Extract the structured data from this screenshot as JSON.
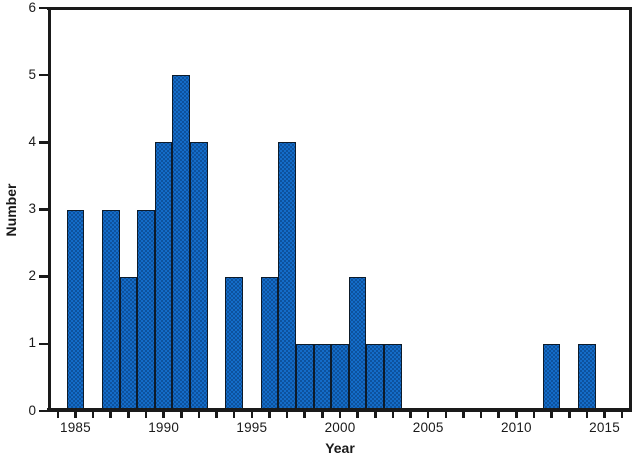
{
  "figure": {
    "x_axis_title": "Year",
    "y_axis_title": "Number"
  },
  "colors": {
    "bar_fill": "#146cc8",
    "bar_stipple": "#073c7a",
    "bar_border": "#0d1b2a",
    "axis": "#1a1a1a",
    "text": "#1a1a1a",
    "background": "#ffffff"
  },
  "chart_data": {
    "type": "bar",
    "title": "",
    "xlabel": "Year",
    "ylabel": "Number",
    "xlim": [
      1983.5,
      2016.5
    ],
    "ylim": [
      0,
      6
    ],
    "grid": false,
    "legend_position": "none",
    "categories": [
      1984,
      1985,
      1986,
      1987,
      1988,
      1989,
      1990,
      1991,
      1992,
      1993,
      1994,
      1995,
      1996,
      1997,
      1998,
      1999,
      2000,
      2001,
      2002,
      2003,
      2004,
      2005,
      2006,
      2007,
      2008,
      2009,
      2010,
      2011,
      2012,
      2013,
      2014,
      2015,
      2016
    ],
    "values": [
      0,
      3,
      0,
      3,
      2,
      3,
      4,
      5,
      4,
      0,
      2,
      0,
      2,
      4,
      1,
      1,
      1,
      2,
      1,
      1,
      0,
      0,
      0,
      0,
      0,
      0,
      0,
      0,
      1,
      0,
      1,
      0,
      0
    ],
    "x_major_tick_years": [
      1985,
      1990,
      1995,
      2000,
      2005,
      2010,
      2015
    ],
    "x_major_tick_labels": [
      "1985",
      "1990",
      "1995",
      "2000",
      "2005",
      "2010",
      "2015"
    ],
    "x_minor_ticks_every_year": true,
    "y_tick_values": [
      0,
      1,
      2,
      3,
      4,
      5,
      6
    ],
    "y_tick_labels": [
      "0",
      "1",
      "2",
      "3",
      "4",
      "5",
      "6"
    ]
  }
}
